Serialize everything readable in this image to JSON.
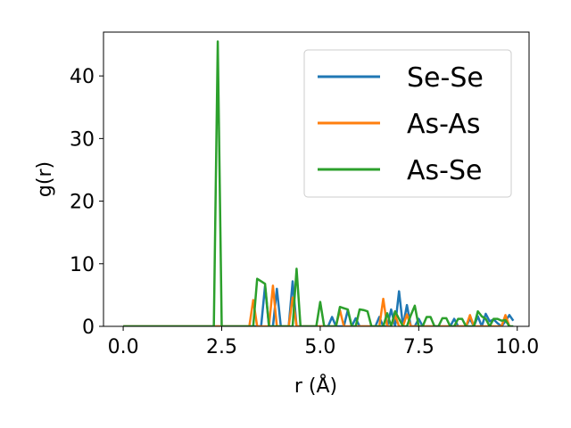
{
  "chart_data": {
    "type": "line",
    "title": "",
    "xlabel": "r (Å)",
    "ylabel": "g(r)",
    "xlim": [
      -0.5,
      10.3
    ],
    "ylim": [
      0,
      47
    ],
    "x_ticks": [
      0.0,
      2.5,
      5.0,
      7.5,
      10.0
    ],
    "x_tick_labels": [
      "0.0",
      "2.5",
      "5.0",
      "7.5",
      "10.0"
    ],
    "y_ticks": [
      0,
      10,
      20,
      30,
      40
    ],
    "y_tick_labels": [
      "0",
      "10",
      "20",
      "30",
      "40"
    ],
    "grid": false,
    "legend_position": "top-right",
    "series": [
      {
        "name": "Se-Se",
        "color": "#1f77b4",
        "x": [
          0.0,
          3.3,
          3.4,
          3.5,
          3.6,
          3.7,
          3.8,
          3.9,
          4.0,
          4.1,
          4.2,
          4.3,
          4.4,
          4.5,
          4.6,
          4.7,
          4.8,
          4.9,
          5.0,
          5.1,
          5.2,
          5.3,
          5.4,
          5.5,
          5.6,
          5.7,
          5.8,
          5.9,
          6.0,
          6.1,
          6.2,
          6.3,
          6.4,
          6.5,
          6.6,
          6.7,
          6.8,
          6.9,
          7.0,
          7.1,
          7.2,
          7.3,
          7.4,
          7.5,
          7.6,
          7.7,
          7.8,
          7.9,
          8.0,
          8.1,
          8.2,
          8.3,
          8.4,
          8.5,
          8.6,
          8.7,
          8.8,
          8.9,
          9.0,
          9.1,
          9.2,
          9.3,
          9.4,
          9.5,
          9.6,
          9.7,
          9.8,
          9.9
        ],
        "y": [
          0,
          0,
          0,
          0,
          6.5,
          0,
          0,
          6.0,
          0,
          0,
          0,
          7.2,
          0,
          0,
          0,
          0,
          0,
          0,
          0,
          0,
          0,
          1.5,
          0,
          0,
          0,
          2.6,
          0,
          1.3,
          0,
          0,
          0,
          0,
          0,
          1.5,
          0,
          0,
          2.7,
          0,
          5.6,
          0,
          3.4,
          0,
          0,
          1.2,
          0,
          0,
          0,
          0,
          0,
          0,
          0,
          0,
          1.2,
          0,
          0,
          0,
          1.2,
          0,
          1.6,
          0,
          2.0,
          0.8,
          1.1,
          0.5,
          0,
          0.8,
          1.8,
          0.9
        ]
      },
      {
        "name": "As-As",
        "color": "#ff7f0e",
        "x": [
          0.0,
          3.2,
          3.3,
          3.4,
          3.5,
          3.6,
          3.7,
          3.8,
          3.9,
          4.0,
          4.1,
          4.2,
          4.3,
          4.4,
          4.5,
          4.6,
          4.7,
          4.8,
          4.9,
          5.0,
          5.1,
          5.2,
          5.3,
          5.4,
          5.5,
          5.6,
          5.7,
          5.8,
          5.9,
          6.0,
          6.1,
          6.2,
          6.3,
          6.4,
          6.5,
          6.6,
          6.7,
          6.8,
          6.9,
          7.0,
          7.1,
          7.2,
          7.3,
          7.4,
          7.5,
          7.6,
          7.7,
          7.8,
          7.9,
          8.0,
          8.1,
          8.2,
          8.3,
          8.4,
          8.5,
          8.6,
          8.7,
          8.8,
          8.9,
          9.0,
          9.1,
          9.2,
          9.3,
          9.4,
          9.5,
          9.6,
          9.7,
          9.8
        ],
        "y": [
          0,
          0,
          4.2,
          0,
          0,
          0,
          0,
          6.5,
          0,
          0,
          0,
          0,
          4.6,
          0,
          0,
          0,
          0,
          0,
          0,
          0,
          0,
          0,
          0,
          0,
          2.6,
          0,
          0,
          0,
          0,
          0,
          0,
          0,
          0,
          0,
          0,
          4.4,
          0,
          0,
          1.8,
          0,
          0,
          1.9,
          0,
          0,
          0,
          0,
          0,
          0,
          0,
          0,
          0,
          0,
          0,
          0,
          0,
          0,
          0,
          1.8,
          0,
          0,
          0,
          0,
          0,
          0,
          0,
          0,
          1.8,
          0
        ]
      },
      {
        "name": "As-Se",
        "color": "#2ca02c",
        "x": [
          0.0,
          2.3,
          2.4,
          2.5,
          3.3,
          3.4,
          3.5,
          3.6,
          3.7,
          3.8,
          3.9,
          4.0,
          4.1,
          4.2,
          4.3,
          4.4,
          4.5,
          4.6,
          4.7,
          4.8,
          4.9,
          5.0,
          5.1,
          5.2,
          5.3,
          5.4,
          5.5,
          5.6,
          5.7,
          5.8,
          5.9,
          6.0,
          6.1,
          6.2,
          6.3,
          6.4,
          6.5,
          6.6,
          6.7,
          6.8,
          6.9,
          7.0,
          7.1,
          7.2,
          7.3,
          7.4,
          7.5,
          7.6,
          7.7,
          7.8,
          7.9,
          8.0,
          8.1,
          8.2,
          8.3,
          8.4,
          8.5,
          8.6,
          8.7,
          8.8,
          8.9,
          9.0,
          9.1,
          9.2,
          9.3,
          9.4,
          9.5,
          9.6,
          9.7,
          9.8,
          9.9
        ],
        "y": [
          0,
          0,
          45.5,
          0,
          0,
          7.6,
          7.2,
          6.8,
          0,
          0,
          0,
          0,
          0,
          0,
          0,
          9.2,
          0,
          0,
          0,
          0,
          0,
          3.9,
          0,
          0,
          0,
          0,
          3.1,
          2.9,
          2.7,
          0,
          0,
          2.7,
          2.6,
          2.4,
          0,
          0,
          0,
          0,
          2.1,
          0,
          2.4,
          1.2,
          0,
          0,
          1.8,
          3.3,
          0,
          0,
          1.5,
          1.5,
          0,
          0,
          1.3,
          1.3,
          0,
          0,
          1.2,
          1.2,
          0,
          0,
          0,
          2.4,
          1.6,
          1.2,
          0,
          1.2,
          1.2,
          0.9,
          1.0,
          0,
          0
        ]
      }
    ]
  }
}
